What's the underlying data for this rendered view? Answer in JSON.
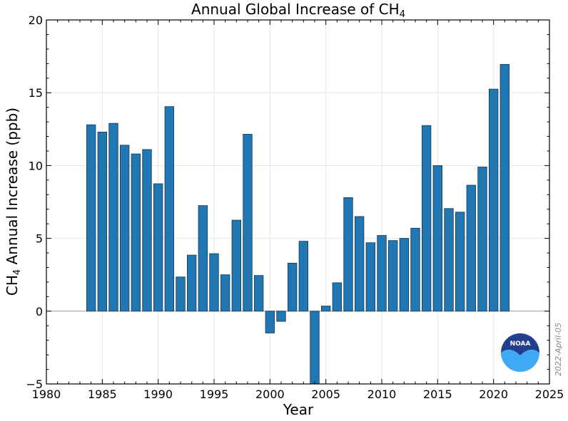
{
  "chart_data": {
    "type": "bar",
    "title": "Annual Global Increase of CH",
    "title_subscript": "4",
    "xlabel": "Year",
    "ylabel_prefix": "CH",
    "ylabel_subscript": "4",
    "ylabel_suffix": " Annual Increase (ppb)",
    "xlim": [
      1980,
      2025
    ],
    "ylim": [
      -5,
      20
    ],
    "xticks": [
      "1980",
      "1985",
      "1990",
      "1995",
      "2000",
      "2005",
      "2010",
      "2015",
      "2020",
      "2025"
    ],
    "yticks": [
      "−5",
      "0",
      "5",
      "10",
      "15",
      "20"
    ],
    "grid": true,
    "bar_color": "#1f77b4",
    "x": [
      1984,
      1985,
      1986,
      1987,
      1988,
      1989,
      1990,
      1991,
      1992,
      1993,
      1994,
      1995,
      1996,
      1997,
      1998,
      1999,
      2000,
      2001,
      2002,
      2003,
      2004,
      2005,
      2006,
      2007,
      2008,
      2009,
      2010,
      2011,
      2012,
      2013,
      2014,
      2015,
      2016,
      2017,
      2018,
      2019,
      2020,
      2021
    ],
    "values": [
      12.8,
      12.3,
      12.9,
      11.4,
      10.8,
      11.1,
      8.75,
      14.05,
      2.35,
      3.85,
      7.25,
      3.95,
      2.5,
      6.25,
      12.15,
      2.45,
      -1.5,
      -0.7,
      3.3,
      4.8,
      -5.0,
      0.35,
      1.95,
      7.8,
      6.5,
      4.7,
      5.2,
      4.85,
      5.0,
      5.7,
      12.75,
      10.0,
      7.05,
      6.8,
      8.65,
      9.9,
      15.25,
      16.95
    ]
  },
  "logo": {
    "text": "NOAA",
    "colors": {
      "top": "#223e8c",
      "bottom": "#3fa9f5"
    }
  },
  "date_stamp": "2022-April-05"
}
